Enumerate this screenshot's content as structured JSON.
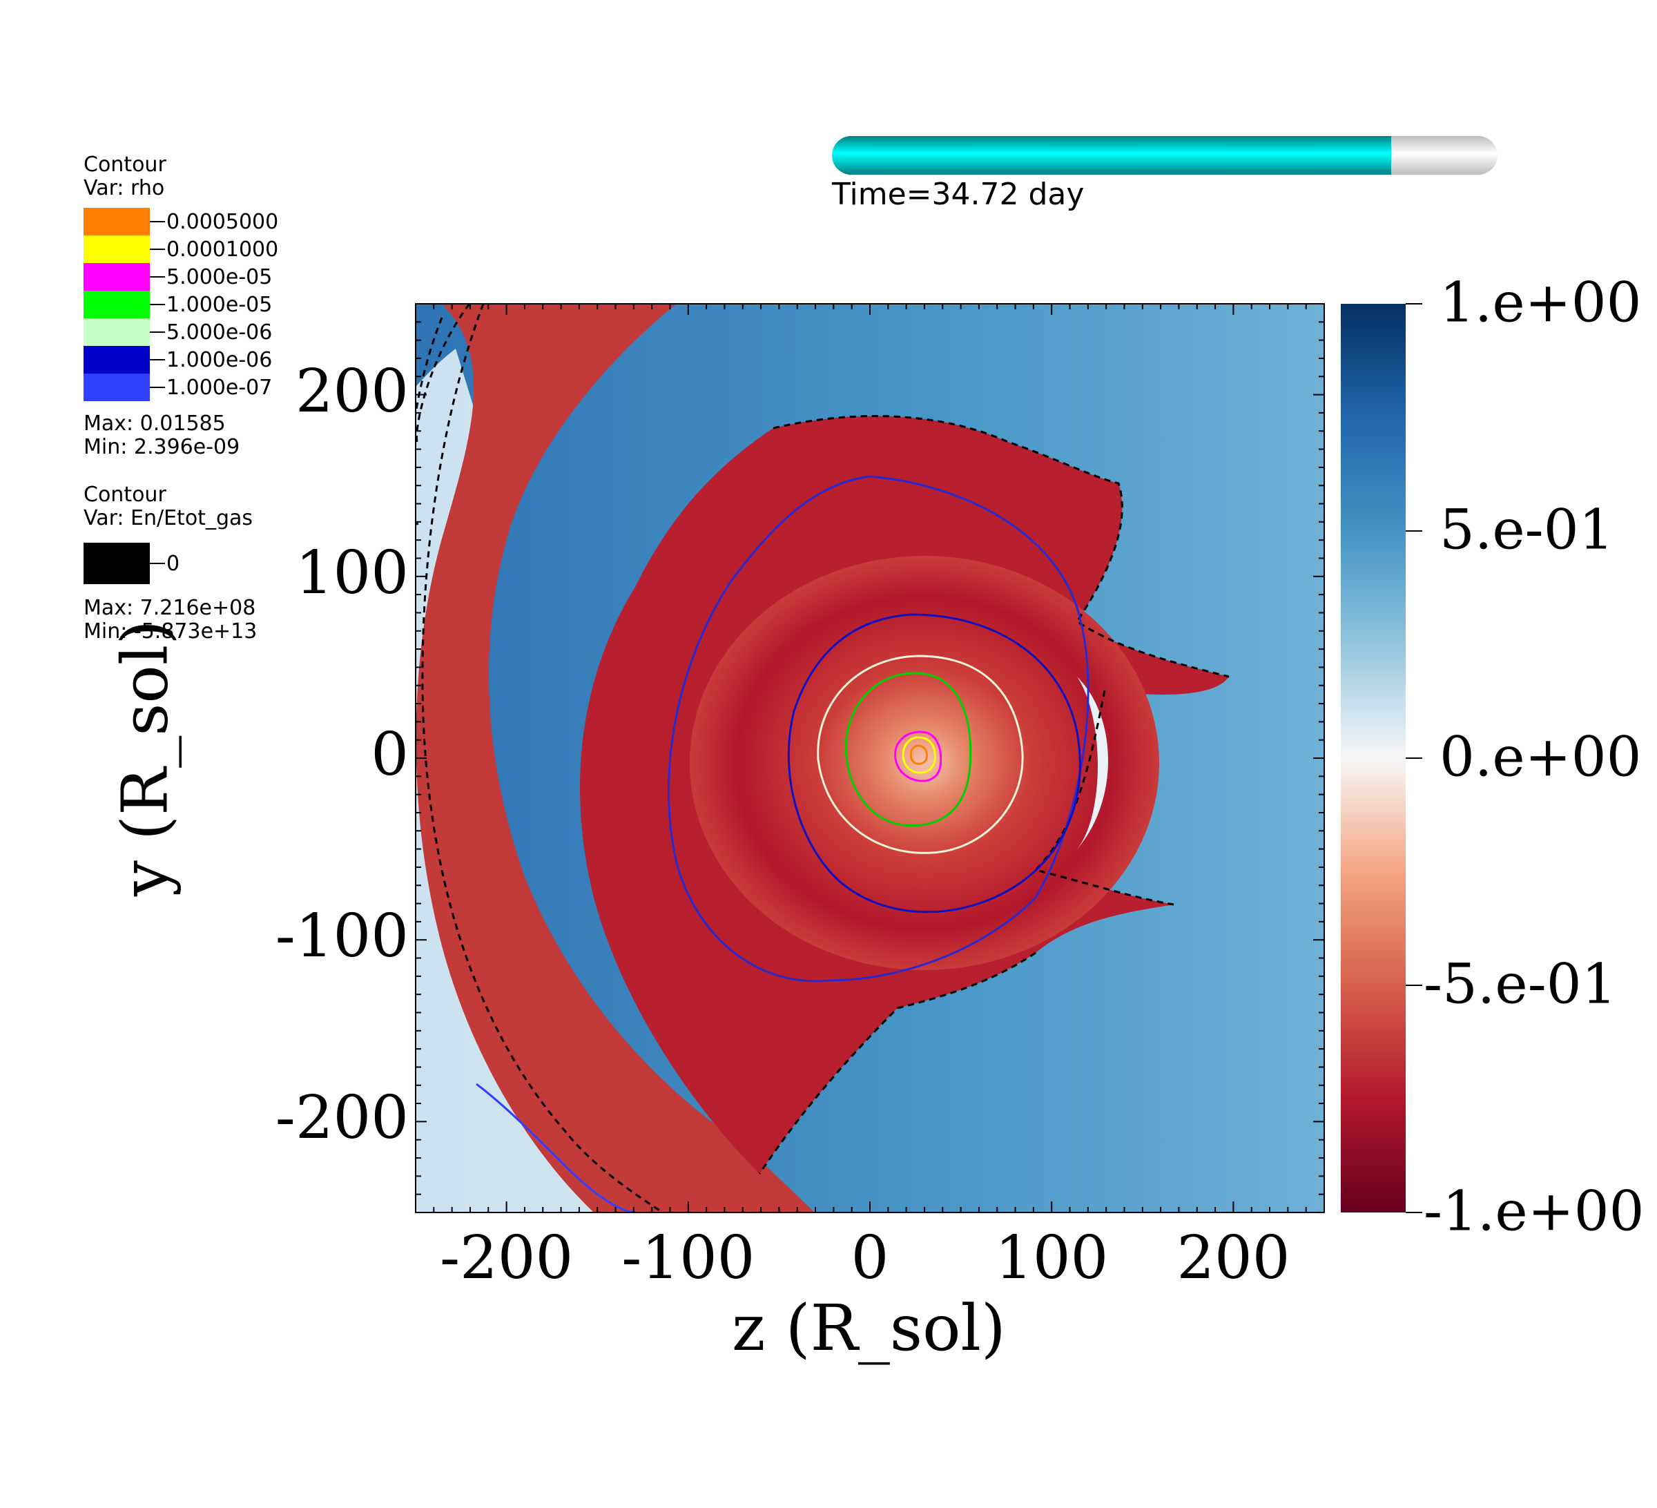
{
  "legend_rho": {
    "title": "Contour",
    "var": "Var: rho",
    "items": [
      {
        "label": "0.0005000",
        "color": "#ff8000"
      },
      {
        "label": "0.0001000",
        "color": "#ffff00"
      },
      {
        "label": "5.000e-05",
        "color": "#ff00ff"
      },
      {
        "label": "1.000e-05",
        "color": "#00ff00"
      },
      {
        "label": "5.000e-06",
        "color": "#c8ffc8"
      },
      {
        "label": "1.000e-06",
        "color": "#0000c8"
      },
      {
        "label": "1.000e-07",
        "color": "#3040ff"
      }
    ],
    "max": "Max:  0.01585",
    "min": "Min:  2.396e-09"
  },
  "legend_en": {
    "title": "Contour",
    "var": "Var: En/Etot_gas",
    "items": [
      {
        "label": "0",
        "color": "#000000"
      }
    ],
    "max": "Max:  7.216e+08",
    "min": "Min: -5.873e+13"
  },
  "time": {
    "label": "Time=34.72 day",
    "progress_fraction": 0.84,
    "fill_color": "#00e5e5"
  },
  "chart_data": {
    "type": "heatmap",
    "title": "",
    "xlabel": "z (R_sol)",
    "ylabel": "y (R_sol)",
    "xlim": [
      -250,
      250
    ],
    "ylim": [
      -250,
      250
    ],
    "xticks": [
      {
        "value": -200,
        "label": "-200"
      },
      {
        "value": -100,
        "label": "-100"
      },
      {
        "value": 0,
        "label": "0"
      },
      {
        "value": 100,
        "label": "100"
      },
      {
        "value": 200,
        "label": "200"
      }
    ],
    "yticks": [
      {
        "value": 200,
        "label": "200"
      },
      {
        "value": 100,
        "label": "100"
      },
      {
        "value": 0,
        "label": "0"
      },
      {
        "value": -100,
        "label": "-100"
      },
      {
        "value": -200,
        "label": "-200"
      }
    ],
    "colorbar": {
      "range": [
        -1,
        1
      ],
      "ticks": [
        {
          "value": 1,
          "label": "1.e+00"
        },
        {
          "value": 0.5,
          "label": "5.e-01"
        },
        {
          "value": 0,
          "label": "0.e+00"
        },
        {
          "value": -0.5,
          "label": "-5.e-01"
        },
        {
          "value": -1,
          "label": "-1.e+00"
        }
      ],
      "colors": [
        "#67001f",
        "#b2182b",
        "#d6604d",
        "#f4a582",
        "#f7f7f7",
        "#92c5de",
        "#4393c3",
        "#2166ac",
        "#053061"
      ]
    },
    "background_field": "diverging red-white-blue spiral envelope centred near (z=25, y=0)",
    "contours_rho_radii_approx": [
      {
        "level": "0.0005000",
        "r": 8
      },
      {
        "level": "0.0001000",
        "r": 14
      },
      {
        "level": "5.000e-05",
        "r": 18
      },
      {
        "level": "1.000e-05",
        "r": 45
      },
      {
        "level": "5.000e-06",
        "r": 62
      },
      {
        "level": "1.000e-06",
        "r": 92
      }
    ],
    "center": {
      "z": 25,
      "y": 0
    }
  }
}
